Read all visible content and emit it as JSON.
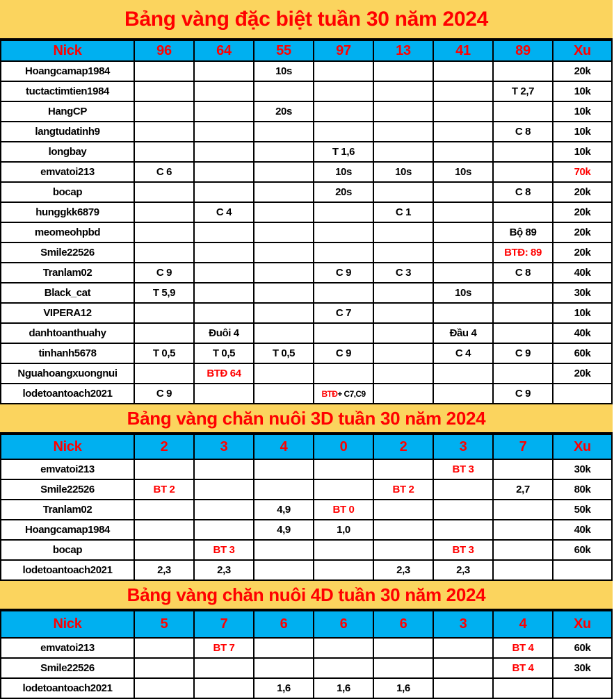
{
  "page": {
    "kind": "forum-golden-board-spreadsheet"
  },
  "colors": {
    "title_bg": "#FBD45E",
    "header_bg": "#00B0F0",
    "accent_red": "#FF0000",
    "border": "#000000",
    "cell_bg": "#FFFFFF"
  },
  "tables": [
    {
      "title": "Bảng vàng đặc biệt tuần 30 năm 2024",
      "columns": [
        "Nick",
        "96",
        "64",
        "55",
        "97",
        "13",
        "41",
        "89",
        "Xu"
      ],
      "rows": [
        {
          "nick": "Hoangcamap1984",
          "cells": [
            "",
            "",
            "10s",
            "",
            "",
            "",
            ""
          ],
          "xu": "20k"
        },
        {
          "nick": "tuctactimtien1984",
          "cells": [
            "",
            "",
            "",
            "",
            "",
            "",
            "T 2,7"
          ],
          "xu": "10k"
        },
        {
          "nick": "HangCP",
          "cells": [
            "",
            "",
            "20s",
            "",
            "",
            "",
            ""
          ],
          "xu": "10k"
        },
        {
          "nick": "langtudatinh9",
          "cells": [
            "",
            "",
            "",
            "",
            "",
            "",
            "C 8"
          ],
          "xu": "10k"
        },
        {
          "nick": "longbay",
          "cells": [
            "",
            "",
            "",
            "T 1,6",
            "",
            "",
            ""
          ],
          "xu": "10k"
        },
        {
          "nick": "emvatoi213",
          "cells": [
            "C 6",
            "",
            "",
            "10s",
            "10s",
            "10s",
            ""
          ],
          "xu": {
            "text": "70k",
            "red": true
          }
        },
        {
          "nick": "bocap",
          "cells": [
            "",
            "",
            "",
            "20s",
            "",
            "",
            "C 8"
          ],
          "xu": "20k"
        },
        {
          "nick": "hunggkk6879",
          "cells": [
            "",
            "C 4",
            "",
            "",
            "C 1",
            "",
            ""
          ],
          "xu": "20k"
        },
        {
          "nick": "meomeohpbd",
          "cells": [
            "",
            "",
            "",
            "",
            "",
            "",
            "Bộ 89"
          ],
          "xu": "20k"
        },
        {
          "nick": "Smile22526",
          "cells": [
            "",
            "",
            "",
            "",
            "",
            "",
            {
              "text": "BTĐ: 89",
              "red": true
            }
          ],
          "xu": "20k"
        },
        {
          "nick": "Tranlam02",
          "cells": [
            "C 9",
            "",
            "",
            "C 9",
            "C 3",
            "",
            "C 8"
          ],
          "xu": "40k"
        },
        {
          "nick": "Black_cat",
          "cells": [
            "T 5,9",
            "",
            "",
            "",
            "",
            "10s",
            ""
          ],
          "xu": "30k"
        },
        {
          "nick": "VIPERA12",
          "cells": [
            "",
            "",
            "",
            "C 7",
            "",
            "",
            ""
          ],
          "xu": "10k"
        },
        {
          "nick": "danhtoanthuahy",
          "cells": [
            "",
            "Đuôi 4",
            "",
            "",
            "",
            "Đầu 4",
            ""
          ],
          "xu": "40k"
        },
        {
          "nick": "tinhanh5678",
          "cells": [
            "T 0,5",
            "T 0,5",
            "T 0,5",
            "C 9",
            "",
            "C 4",
            "C 9"
          ],
          "xu": "60k"
        },
        {
          "nick": "Nguahoangxuongnui",
          "cells": [
            "",
            {
              "text": "BTĐ 64",
              "red": true
            },
            "",
            "",
            "",
            "",
            ""
          ],
          "xu": "20k"
        },
        {
          "nick": "lodetoantoach2021",
          "cells": [
            "C 9",
            "",
            "",
            {
              "parts": [
                {
                  "text": "BTĐ",
                  "red": true
                },
                {
                  "text": "+ C7,C9",
                  "red": false
                }
              ],
              "small": true
            },
            "",
            "",
            "C 9"
          ],
          "xu": ""
        }
      ]
    },
    {
      "title": "Bảng vàng chăn nuôi 3D tuần 30 năm 2024",
      "columns": [
        "Nick",
        "2",
        "3",
        "4",
        "0",
        "2",
        "3",
        "7",
        "Xu"
      ],
      "rows": [
        {
          "nick": "emvatoi213",
          "cells": [
            "",
            "",
            "",
            "",
            "",
            {
              "text": "BT 3",
              "red": true
            },
            ""
          ],
          "xu": "30k"
        },
        {
          "nick": "Smile22526",
          "cells": [
            {
              "text": "BT 2",
              "red": true
            },
            "",
            "",
            "",
            {
              "text": "BT 2",
              "red": true
            },
            "",
            "2,7"
          ],
          "xu": "80k"
        },
        {
          "nick": "Tranlam02",
          "cells": [
            "",
            "",
            "4,9",
            {
              "text": "BT 0",
              "red": true
            },
            "",
            "",
            ""
          ],
          "xu": "50k"
        },
        {
          "nick": "Hoangcamap1984",
          "cells": [
            "",
            "",
            "4,9",
            "1,0",
            "",
            "",
            ""
          ],
          "xu": "40k"
        },
        {
          "nick": "bocap",
          "cells": [
            "",
            {
              "text": "BT 3",
              "red": true
            },
            "",
            "",
            "",
            {
              "text": "BT 3",
              "red": true
            },
            ""
          ],
          "xu": "60k"
        },
        {
          "nick": "lodetoantoach2021",
          "cells": [
            "2,3",
            "2,3",
            "",
            "",
            "2,3",
            "2,3",
            ""
          ],
          "xu": ""
        }
      ]
    },
    {
      "title": "Bảng vàng chăn nuôi 4D tuần 30 năm 2024",
      "columns": [
        "Nick",
        "5",
        "7",
        "6",
        "6",
        "6",
        "3",
        "4",
        "Xu"
      ],
      "rows": [
        {
          "nick": "emvatoi213",
          "cells": [
            "",
            {
              "text": "BT 7",
              "red": true
            },
            "",
            "",
            "",
            "",
            {
              "text": "BT 4",
              "red": true
            }
          ],
          "xu": "60k"
        },
        {
          "nick": "Smile22526",
          "cells": [
            "",
            "",
            "",
            "",
            "",
            "",
            {
              "text": "BT 4",
              "red": true
            }
          ],
          "xu": "30k"
        },
        {
          "nick": "lodetoantoach2021",
          "cells": [
            "",
            "",
            "1,6",
            "1,6",
            "1,6",
            "",
            ""
          ],
          "xu": ""
        }
      ]
    }
  ]
}
